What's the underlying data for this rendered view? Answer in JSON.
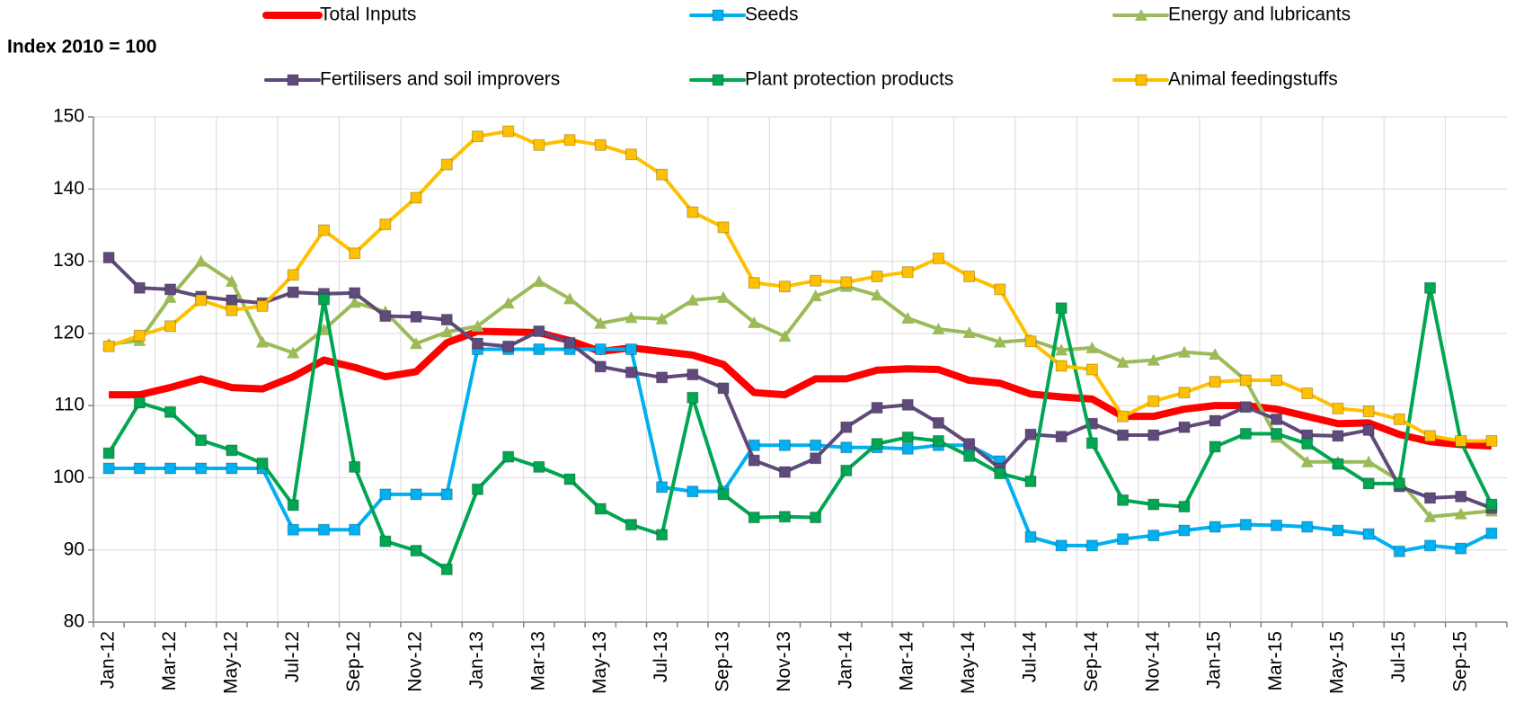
{
  "chart_data": {
    "type": "line",
    "y_label": "Index 2010 = 100",
    "categories": [
      "Jan-12",
      null,
      "Mar-12",
      null,
      "May-12",
      null,
      "Jul-12",
      null,
      "Sep-12",
      null,
      "Nov-12",
      null,
      "Jan-13",
      null,
      "Mar-13",
      null,
      "May-13",
      null,
      "Jul-13",
      null,
      "Sep-13",
      null,
      "Nov-13",
      null,
      "Jan-14",
      null,
      "Mar-14",
      null,
      "May-14",
      null,
      "Jul-14",
      null,
      "Sep-14",
      null,
      "Nov-14",
      null,
      "Jan-15",
      null,
      "Mar-15",
      null,
      "May-15",
      null,
      "Jul-15",
      null,
      "Sep-15",
      null
    ],
    "ylim": [
      80,
      150
    ],
    "yticks": [
      80,
      90,
      100,
      110,
      120,
      130,
      140,
      150
    ],
    "grid": true,
    "legend": "top",
    "series": [
      {
        "name": "Total Inputs",
        "color": "#ff0000",
        "marker": "none",
        "values": [
          111.5,
          111.5,
          112.5,
          113.7,
          112.5,
          112.3,
          114,
          116.3,
          115.3,
          114,
          114.7,
          118.7,
          120.3,
          120.2,
          120.1,
          119,
          117.5,
          118,
          117.5,
          117,
          115.7,
          111.8,
          111.5,
          113.7,
          113.7,
          114.9,
          115.1,
          115,
          113.5,
          113.1,
          111.6,
          111.2,
          110.9,
          108.5,
          108.5,
          109.5,
          110,
          110,
          109.5,
          108.5,
          107.5,
          107.6,
          106,
          105,
          104.6,
          104.4
        ]
      },
      {
        "name": "Seeds",
        "color": "#00b0f0",
        "marker": "square",
        "values": [
          101.3,
          101.3,
          101.3,
          101.3,
          101.3,
          101.3,
          92.8,
          92.8,
          92.8,
          97.7,
          97.7,
          97.7,
          117.8,
          117.8,
          117.8,
          117.8,
          117.8,
          117.8,
          98.7,
          98.1,
          98.1,
          104.5,
          104.5,
          104.5,
          104.2,
          104.2,
          104,
          104.5,
          104.5,
          102.3,
          91.8,
          90.6,
          90.6,
          91.5,
          92,
          92.7,
          93.2,
          93.5,
          93.4,
          93.2,
          92.7,
          92.2,
          89.8,
          90.6,
          90.2,
          92.3
        ]
      },
      {
        "name": "Energy and lubricants",
        "color": "#9bbb59",
        "marker": "triangle",
        "values": [
          118.5,
          119,
          125,
          130,
          127.2,
          118.8,
          117.3,
          120.5,
          124.3,
          123,
          118.6,
          120.2,
          121,
          124.2,
          127.2,
          124.8,
          121.4,
          122.2,
          122,
          124.6,
          125,
          121.5,
          119.6,
          125.2,
          126.5,
          125.3,
          122.1,
          120.6,
          120.1,
          118.8,
          119.1,
          117.7,
          118,
          116,
          116.3,
          117.4,
          117.1,
          113.5,
          105.6,
          102.2,
          102.2,
          102.2,
          99.6,
          94.6,
          95,
          95.4
        ]
      },
      {
        "name": "Fertilisers and soil improvers",
        "color": "#604a7b",
        "marker": "square",
        "values": [
          130.5,
          126.3,
          126.1,
          125.1,
          124.6,
          124.2,
          125.7,
          125.5,
          125.6,
          122.4,
          122.3,
          121.9,
          118.6,
          118.2,
          120.3,
          118.7,
          115.4,
          114.6,
          113.9,
          114.3,
          112.4,
          102.4,
          100.8,
          102.7,
          107,
          109.7,
          110.1,
          107.6,
          104.7,
          101.3,
          106,
          105.7,
          107.5,
          105.9,
          105.9,
          107,
          107.9,
          109.8,
          108.1,
          105.9,
          105.8,
          106.6,
          98.8,
          97.2,
          97.4,
          95.8
        ]
      },
      {
        "name": "Plant protection products",
        "color": "#00a651",
        "marker": "square",
        "values": [
          103.4,
          110.4,
          109.1,
          105.2,
          103.8,
          102,
          96.2,
          124.7,
          101.5,
          91.2,
          89.9,
          87.3,
          98.4,
          102.9,
          101.5,
          99.8,
          95.7,
          93.5,
          92.1,
          111.1,
          97.7,
          94.5,
          94.6,
          94.5,
          101,
          104.7,
          105.6,
          105.1,
          103,
          100.6,
          99.5,
          123.5,
          104.8,
          96.9,
          96.3,
          96,
          104.3,
          106.1,
          106.1,
          104.7,
          101.9,
          99.2,
          99.2,
          126.3,
          105,
          96.3
        ]
      },
      {
        "name": "Animal feedingstuffs",
        "color": "#ffc000",
        "marker": "square",
        "values": [
          118.2,
          119.7,
          121,
          124.6,
          123.2,
          123.8,
          128.1,
          134.3,
          131.1,
          135.1,
          138.8,
          143.4,
          147.3,
          148,
          146.1,
          146.8,
          146.1,
          144.8,
          142,
          136.8,
          134.7,
          127,
          126.5,
          127.3,
          127.1,
          127.9,
          128.5,
          130.4,
          127.9,
          126.1,
          118.9,
          115.5,
          115,
          108.5,
          110.6,
          111.8,
          113.3,
          113.5,
          113.5,
          111.7,
          109.6,
          109.2,
          108.1,
          105.8,
          105.1,
          105.1
        ]
      }
    ]
  }
}
